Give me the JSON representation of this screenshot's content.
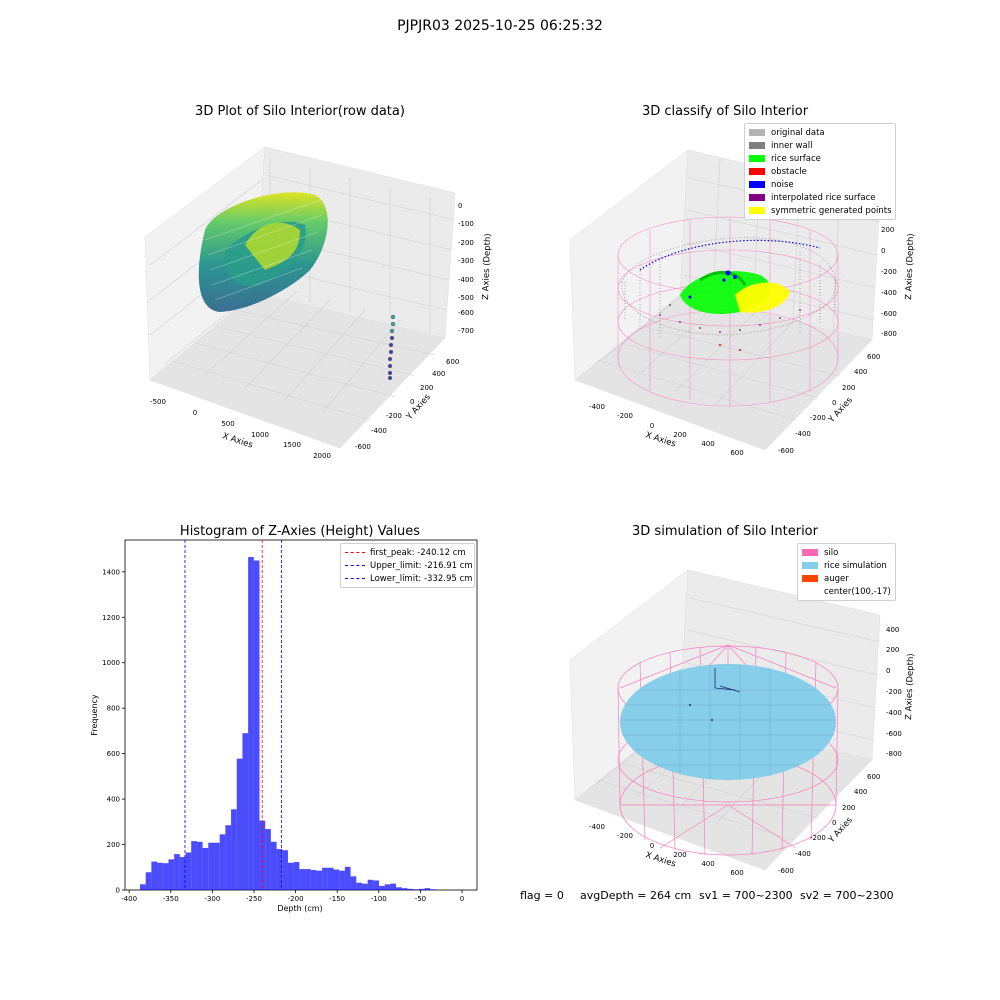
{
  "suptitle": "PJPJR03 2025-10-25 06:25:32",
  "footer": {
    "flag": "flag = 0",
    "avg": "avgDepth = 264 cm",
    "sv1": "sv1 = 700~2300",
    "sv2": "sv2 = 700~2300"
  },
  "chart_data": [
    {
      "type": "scatter",
      "projection": "3d",
      "title": "3D Plot of Silo Interior(row data)",
      "xlabel": "X Axies",
      "ylabel": "Y Axies",
      "zlabel": "Z Axies (Depth)",
      "x_ticks": [
        "-500",
        "0",
        "500",
        "1000",
        "1500",
        "2000"
      ],
      "y_ticks": [
        "-600",
        "-400",
        "-200",
        "0",
        "200",
        "400",
        "600"
      ],
      "z_ticks": [
        "0",
        "-100",
        "-200",
        "-300",
        "-400",
        "-500",
        "-600",
        "-700"
      ],
      "colormap": "viridis"
    },
    {
      "type": "scatter",
      "projection": "3d",
      "title": "3D classify of Silo Interior",
      "xlabel": "X Axies",
      "ylabel": "Y Axies",
      "zlabel": "Z Axies (Depth)",
      "x_ticks": [
        "-400",
        "-200",
        "0",
        "200",
        "400",
        "600"
      ],
      "y_ticks": [
        "-600",
        "-400",
        "-200",
        "0",
        "200",
        "400",
        "600"
      ],
      "z_ticks": [
        "200",
        "0",
        "-200",
        "-400",
        "-600",
        "-800"
      ],
      "z_ticks_extra": [
        "00"
      ],
      "legend": [
        {
          "label": "original data",
          "color": "#b4b4b4"
        },
        {
          "label": "inner wall",
          "color": "#808080"
        },
        {
          "label": "rice surface",
          "color": "#00ff00"
        },
        {
          "label": "obstacle",
          "color": "#ff0000"
        },
        {
          "label": "noise",
          "color": "#0000ff"
        },
        {
          "label": "interpolated rice surface",
          "color": "#800080"
        },
        {
          "label": "symmetric generated points",
          "color": "#ffff00"
        }
      ]
    },
    {
      "type": "bar",
      "title": "Histogram of Z-Axies (Height) Values",
      "xlabel": "Depth (cm)",
      "ylabel": "Frequency",
      "xlim": [
        -405,
        18
      ],
      "ylim": [
        0,
        1540
      ],
      "x_ticks": [
        -400,
        -350,
        -300,
        -250,
        -200,
        -150,
        -100,
        -50,
        0
      ],
      "y_ticks": [
        0,
        200,
        400,
        600,
        800,
        1000,
        1200,
        1400
      ],
      "bin_start": -387,
      "bin_width": 6.84,
      "values": [
        25,
        78,
        125,
        120,
        118,
        135,
        158,
        145,
        165,
        215,
        212,
        185,
        208,
        208,
        245,
        285,
        355,
        578,
        690,
        1465,
        1450,
        305,
        268,
        212,
        180,
        175,
        120,
        123,
        92,
        92,
        88,
        85,
        98,
        98,
        90,
        85,
        102,
        60,
        32,
        28,
        45,
        42,
        18,
        25,
        28,
        12,
        8,
        5,
        3,
        5,
        8,
        3
      ],
      "bar_color": "#0000ff",
      "vlines": [
        {
          "x": -240.12,
          "color": "#ff0000",
          "label": "first_peak: -240.12 cm"
        },
        {
          "x": -216.91,
          "color": "#0000ff",
          "label": "Upper_limit: -216.91 cm"
        },
        {
          "x": -332.95,
          "color": "#0000ff",
          "label": "Lower_limit: -332.95 cm"
        }
      ],
      "legend_position": "top-right"
    },
    {
      "type": "scatter",
      "projection": "3d",
      "title": "3D simulation of Silo Interior",
      "xlabel": "X Axies",
      "ylabel": "Y Axies",
      "zlabel": "Z Axies (Depth)",
      "x_ticks": [
        "-400",
        "-200",
        "0",
        "200",
        "400",
        "600"
      ],
      "y_ticks": [
        "-600",
        "-400",
        "-200",
        "0",
        "200",
        "400",
        "600"
      ],
      "z_ticks": [
        "400",
        "200",
        "0",
        "-200",
        "-400",
        "-600",
        "-800"
      ],
      "legend": [
        {
          "label": "silo",
          "color": "#ff69b4"
        },
        {
          "label": "rice simulation",
          "color": "#87ceeb"
        },
        {
          "label": "auger",
          "color": "#ff4500"
        },
        {
          "label": "center(100,-17)",
          "color": ""
        }
      ]
    }
  ]
}
